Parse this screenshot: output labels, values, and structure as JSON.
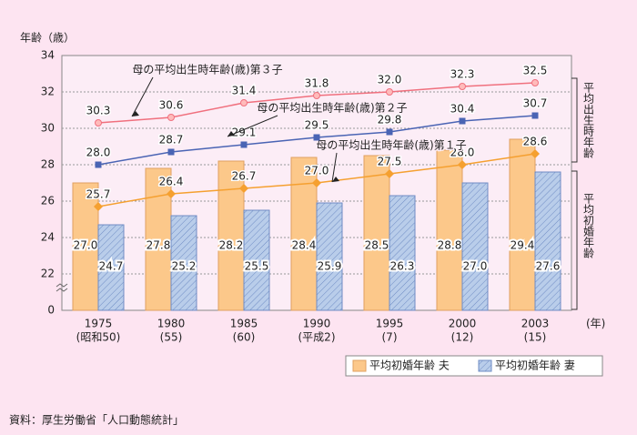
{
  "chart_data": {
    "type": "combo",
    "y_title": "年齢（歳）",
    "x_unit": "(年)",
    "categories": [
      "1975",
      "1980",
      "1985",
      "1990",
      "1995",
      "2000",
      "2003"
    ],
    "sub_categories": [
      "(昭和50)",
      "(55)",
      "(60)",
      "(平成2)",
      "(7)",
      "(12)",
      "(15)"
    ],
    "ylim": [
      20,
      34
    ],
    "yticks": [
      22,
      24,
      26,
      28,
      30,
      32,
      34
    ],
    "y_origin_label": "0",
    "grid": true,
    "side_labels": [
      "平均出生時年齢",
      "平均初婚年齢"
    ],
    "legend": "bottom-right",
    "series": [
      {
        "name": "平均初婚年齢 夫",
        "type": "bar",
        "color": "#fcc88a",
        "values": [
          27.0,
          27.8,
          28.2,
          28.4,
          28.5,
          28.8,
          29.4
        ],
        "value_labels": [
          "27.0",
          "27.8",
          "28.2",
          "28.4",
          "28.5",
          "28.8",
          "29.4"
        ]
      },
      {
        "name": "平均初婚年齢 妻",
        "type": "bar",
        "color": "#b9cdea",
        "hatch": true,
        "values": [
          24.7,
          25.2,
          25.5,
          25.9,
          26.3,
          27.0,
          27.6
        ],
        "value_labels": [
          "24.7",
          "25.2",
          "25.5",
          "25.9",
          "26.3",
          "27.0",
          "27.6"
        ]
      },
      {
        "name": "母の平均出生時年齢(歳)第１子",
        "type": "line",
        "marker": "diamond",
        "color": "#f5a030",
        "values": [
          25.7,
          26.4,
          26.7,
          27.0,
          27.5,
          28.0,
          28.6
        ],
        "value_labels": [
          "25.7",
          "26.4",
          "26.7",
          "27.0",
          "27.5",
          "28.0",
          "28.6"
        ]
      },
      {
        "name": "母の平均出生時年齢(歳)第２子",
        "type": "line",
        "marker": "square",
        "color": "#4a64b4",
        "values": [
          28.0,
          28.7,
          29.1,
          29.5,
          29.8,
          30.4,
          30.7
        ],
        "value_labels": [
          "28.0",
          "28.7",
          "29.1",
          "29.5",
          "29.8",
          "30.4",
          "30.7"
        ]
      },
      {
        "name": "母の平均出生時年齢(歳)第３子",
        "type": "line",
        "marker": "circle",
        "color": "#f0707e",
        "values": [
          30.3,
          30.6,
          31.4,
          31.8,
          32.0,
          32.3,
          32.5
        ],
        "value_labels": [
          "30.3",
          "30.6",
          "31.4",
          "31.8",
          "32.0",
          "32.3",
          "32.5"
        ]
      }
    ],
    "source": "資料：厚生労働省「人口動態統計」"
  }
}
